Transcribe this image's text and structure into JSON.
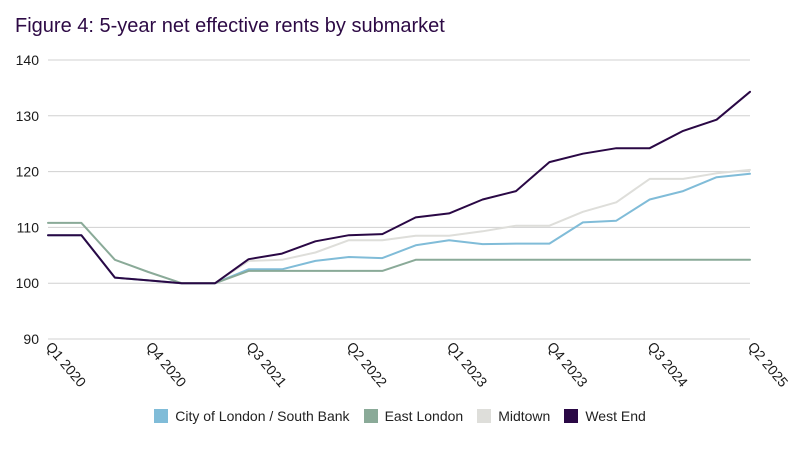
{
  "chart_data": {
    "type": "line",
    "title": "Figure 4: 5-year net effective rents by submarket",
    "xlabel": "",
    "ylabel": "",
    "ylim": [
      90,
      140
    ],
    "yticks": [
      90,
      100,
      110,
      120,
      130,
      140
    ],
    "grid": true,
    "legend_position": "bottom",
    "x": [
      "Q1 2020",
      "Q2 2020",
      "Q3 2020",
      "Q4 2020",
      "Q1 2021",
      "Q2 2021",
      "Q3 2021",
      "Q4 2021",
      "Q1 2022",
      "Q2 2022",
      "Q3 2022",
      "Q4 2022",
      "Q1 2023",
      "Q2 2023",
      "Q3 2023",
      "Q4 2023",
      "Q1 2024",
      "Q2 2024",
      "Q3 2024",
      "Q4 2024",
      "Q1 2025",
      "Q2 2025"
    ],
    "xtick_labels": [
      "Q1 2020",
      "Q4 2020",
      "Q3 2021",
      "Q2 2022",
      "Q1 2023",
      "Q4 2023",
      "Q3 2024",
      "Q2 2025"
    ],
    "series": [
      {
        "name": "City of London / South Bank",
        "color": "#80bcd8",
        "values": [
          108.6,
          108.6,
          101.0,
          100.5,
          100.0,
          100.0,
          102.5,
          102.5,
          104.0,
          104.7,
          104.5,
          106.8,
          107.7,
          107.0,
          107.1,
          107.1,
          110.9,
          111.2,
          115.0,
          116.5,
          119.0,
          119.6
        ]
      },
      {
        "name": "East London",
        "color": "#8aaa98",
        "values": [
          110.8,
          110.8,
          104.2,
          102.0,
          100.0,
          100.0,
          102.2,
          102.2,
          102.2,
          102.2,
          102.2,
          104.2,
          104.2,
          104.2,
          104.2,
          104.2,
          104.2,
          104.2,
          104.2,
          104.2,
          104.2,
          104.2
        ]
      },
      {
        "name": "Midtown",
        "color": "#dededa",
        "values": [
          108.6,
          108.6,
          101.0,
          100.5,
          100.0,
          100.0,
          104.0,
          104.2,
          105.5,
          107.7,
          107.7,
          108.5,
          108.5,
          109.3,
          110.3,
          110.3,
          112.8,
          114.5,
          118.7,
          118.7,
          119.7,
          120.3
        ]
      },
      {
        "name": "West End",
        "color": "#2a0845",
        "values": [
          108.6,
          108.6,
          101.0,
          100.5,
          100.0,
          100.0,
          104.3,
          105.3,
          107.5,
          108.6,
          108.8,
          111.8,
          112.5,
          115.0,
          116.5,
          121.7,
          123.2,
          124.2,
          124.2,
          127.3,
          129.3,
          134.3
        ]
      }
    ]
  }
}
